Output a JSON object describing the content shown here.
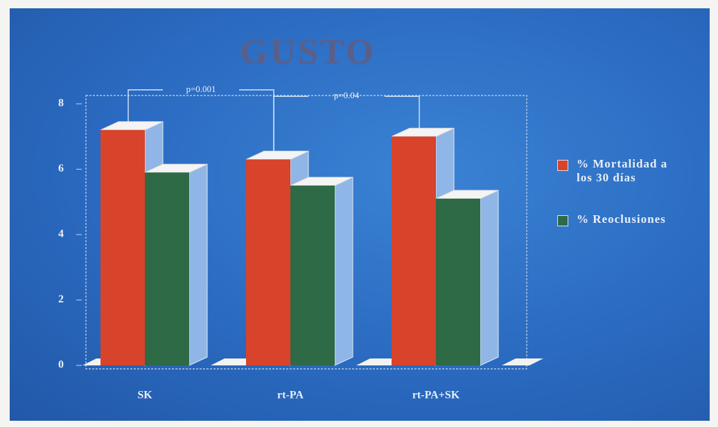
{
  "chart_data": {
    "type": "bar3d",
    "title": "GUSTO",
    "categories": [
      "SK",
      "rt-PA",
      "rt-PA+SK"
    ],
    "series": [
      {
        "name": "% Mortalidad a los 30 días",
        "color": "#d8432c",
        "values": [
          7.2,
          6.3,
          7.0
        ]
      },
      {
        "name": "% Reoclusiones",
        "color": "#2e6a46",
        "values": [
          5.9,
          5.5,
          5.1
        ]
      }
    ],
    "ylim": [
      0,
      8
    ],
    "yticks": [
      0,
      2,
      4,
      6,
      8
    ],
    "annotations": [
      {
        "text": "p=0.001"
      },
      {
        "text": "p=0.04"
      }
    ]
  }
}
